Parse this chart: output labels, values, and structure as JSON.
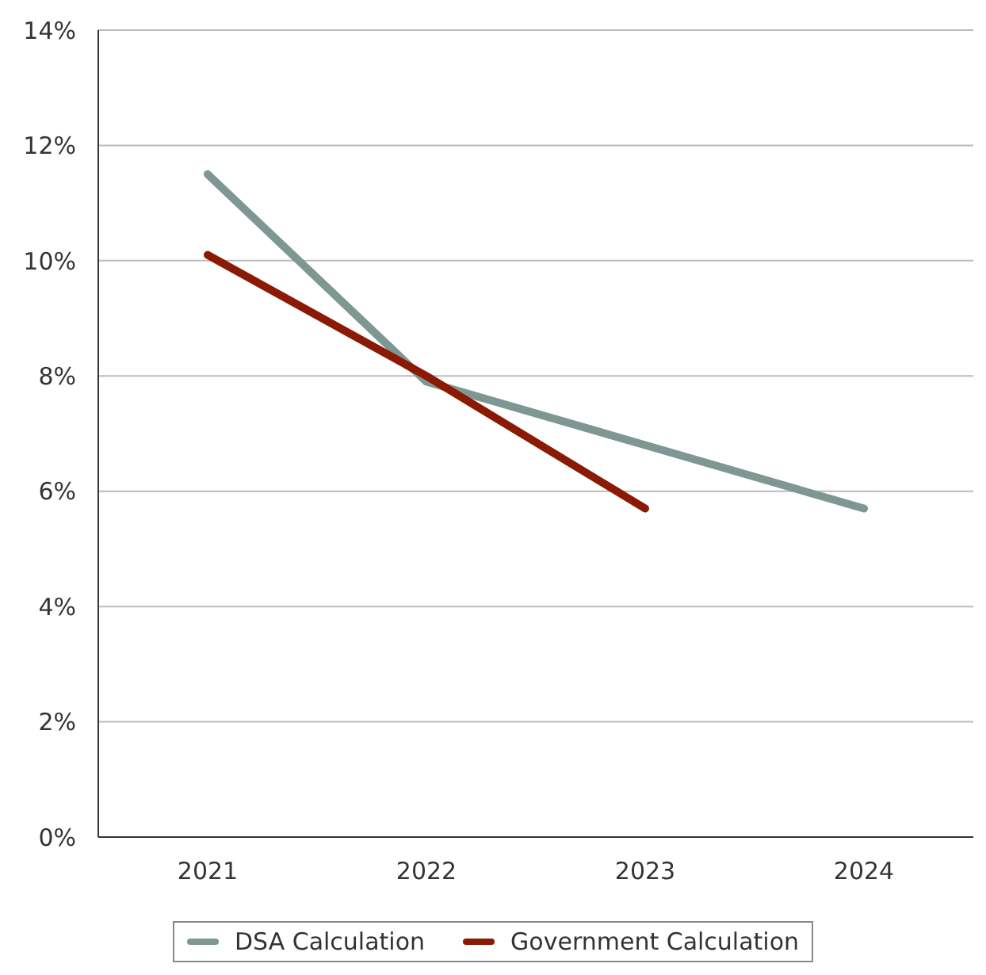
{
  "chart_data": {
    "type": "line",
    "categories": [
      "2021",
      "2022",
      "2023",
      "2024"
    ],
    "series": [
      {
        "name": "DSA Calculation",
        "color": "#7f9792",
        "values": [
          11.5,
          7.9,
          6.8,
          5.7
        ]
      },
      {
        "name": "Government Calculation",
        "color": "#8b1a04",
        "values": [
          10.1,
          8.0,
          5.7,
          null
        ]
      }
    ],
    "ylim": [
      0,
      14
    ],
    "yticks": [
      {
        "value": 0,
        "label": "0%"
      },
      {
        "value": 2,
        "label": "2%"
      },
      {
        "value": 4,
        "label": "4%"
      },
      {
        "value": 6,
        "label": "6%"
      },
      {
        "value": 8,
        "label": "8%"
      },
      {
        "value": 10,
        "label": "10%"
      },
      {
        "value": 12,
        "label": "12%"
      },
      {
        "value": 14,
        "label": "14%"
      }
    ],
    "grid": "y",
    "legend": "bottom",
    "marker": "none",
    "line_style": "solid"
  }
}
